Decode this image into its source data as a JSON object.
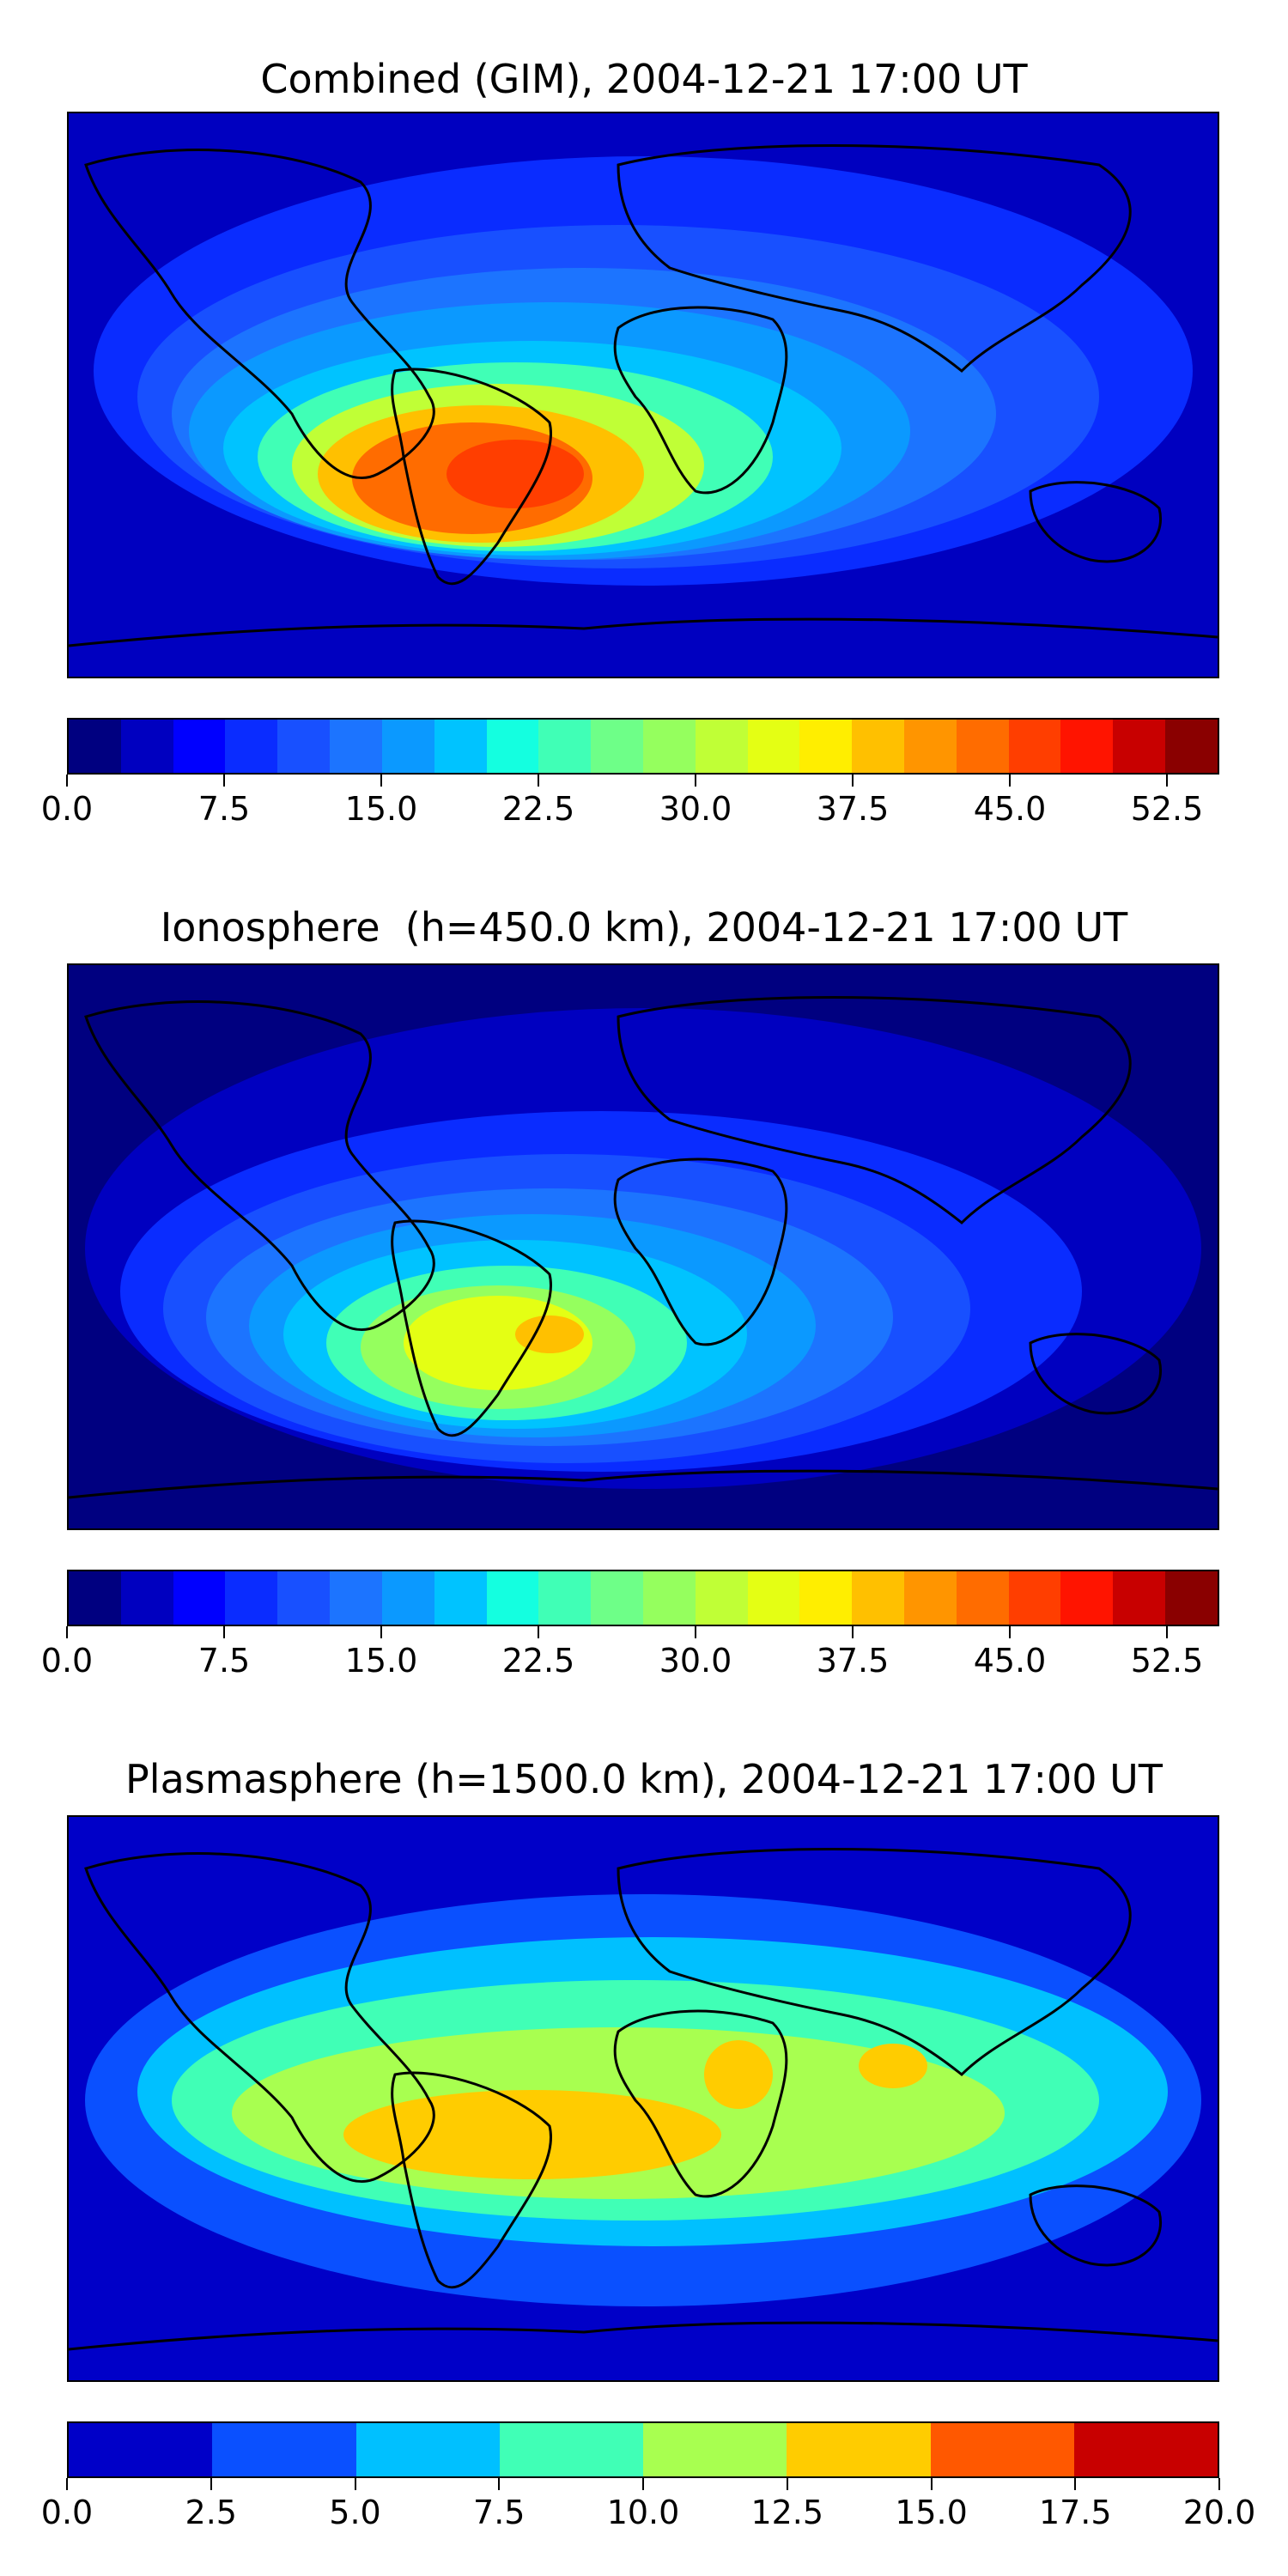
{
  "panels": [
    {
      "title": "Combined (GIM), 2004-12-21 17:00 UT",
      "colorbar": {
        "colors": [
          "#000080",
          "#0000c0",
          "#0000ff",
          "#0a2cff",
          "#1850ff",
          "#1c74ff",
          "#0b99ff",
          "#00c3ff",
          "#14ffe0",
          "#40ffb6",
          "#6eff88",
          "#95ff5e",
          "#c0ff36",
          "#e4ff14",
          "#ffee00",
          "#ffc000",
          "#ff9500",
          "#ff6c00",
          "#ff3e00",
          "#ff1400",
          "#c80000",
          "#8a0000"
        ],
        "tick_labels": [
          "0.0",
          "7.5",
          "15.0",
          "22.5",
          "30.0",
          "37.5",
          "45.0",
          "52.5"
        ],
        "tick_values": [
          0,
          7.5,
          15,
          22.5,
          30,
          37.5,
          45,
          52.5
        ],
        "vmin": 0,
        "vmax": 55
      }
    },
    {
      "title": "Ionosphere  (h=450.0 km), 2004-12-21 17:00 UT",
      "colorbar": {
        "colors": [
          "#000080",
          "#0000c0",
          "#0000ff",
          "#0a2cff",
          "#1850ff",
          "#1c74ff",
          "#0b99ff",
          "#00c3ff",
          "#14ffe0",
          "#40ffb6",
          "#6eff88",
          "#95ff5e",
          "#c0ff36",
          "#e4ff14",
          "#ffee00",
          "#ffc000",
          "#ff9500",
          "#ff6c00",
          "#ff3e00",
          "#ff1400",
          "#c80000",
          "#8a0000"
        ],
        "tick_labels": [
          "0.0",
          "7.5",
          "15.0",
          "22.5",
          "30.0",
          "37.5",
          "45.0",
          "52.5"
        ],
        "tick_values": [
          0,
          7.5,
          15,
          22.5,
          30,
          37.5,
          45,
          52.5
        ],
        "vmin": 0,
        "vmax": 55
      }
    },
    {
      "title": "Plasmasphere (h=1500.0 km), 2004-12-21 17:00 UT",
      "colorbar": {
        "colors": [
          "#0000c8",
          "#0a50ff",
          "#00c0ff",
          "#40ffb6",
          "#a8ff50",
          "#ffcc00",
          "#ff5800",
          "#c80000"
        ],
        "tick_labels": [
          "0.0",
          "2.5",
          "5.0",
          "7.5",
          "10.0",
          "12.5",
          "15.0",
          "17.5",
          "20.0"
        ],
        "tick_values": [
          0,
          2.5,
          5,
          7.5,
          10,
          12.5,
          15,
          17.5,
          20
        ],
        "vmin": 0,
        "vmax": 20
      }
    }
  ],
  "map_palettes": [
    [
      "#0000c0",
      "#0a2cff",
      "#1850ff",
      "#1c74ff",
      "#0b99ff",
      "#00c3ff",
      "#40ffb6",
      "#c0ff36",
      "#ffc000",
      "#ff6c00",
      "#ff3e00"
    ],
    [
      "#000080",
      "#0000c0",
      "#0a2cff",
      "#1850ff",
      "#1c74ff",
      "#0b99ff",
      "#00c3ff",
      "#40ffb6",
      "#95ff5e",
      "#e4ff14",
      "#ffc000"
    ],
    [
      "#0000c8",
      "#0a50ff",
      "#00c0ff",
      "#40ffb6",
      "#a8ff50",
      "#ffcc00"
    ]
  ]
}
